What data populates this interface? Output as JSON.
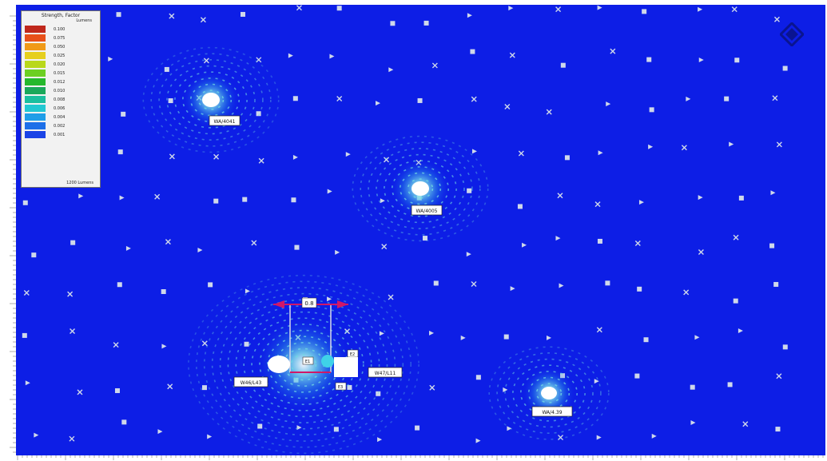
{
  "legend": {
    "title": "Strength, Factor",
    "unit": "Lumens",
    "footer": "1200 Lumens",
    "levels": [
      {
        "value": "0.100",
        "color": "#c0281c"
      },
      {
        "value": "0.075",
        "color": "#e8501a"
      },
      {
        "value": "0.050",
        "color": "#f09a18"
      },
      {
        "value": "0.025",
        "color": "#e6cf1e"
      },
      {
        "value": "0.020",
        "color": "#b9d81a"
      },
      {
        "value": "0.015",
        "color": "#6ccf22"
      },
      {
        "value": "0.012",
        "color": "#25b82c"
      },
      {
        "value": "0.010",
        "color": "#1aa85a"
      },
      {
        "value": "0.008",
        "color": "#1bbf9f"
      },
      {
        "value": "0.006",
        "color": "#22c8d2"
      },
      {
        "value": "0.004",
        "color": "#1f9ee8"
      },
      {
        "value": "0.002",
        "color": "#1d6fe8"
      },
      {
        "value": "0.001",
        "color": "#1b44e6"
      }
    ]
  },
  "colors": {
    "background": "#0d1ee6",
    "contour": "#6fd6e0",
    "marker": "#cfd8ea",
    "dimension_line": "#d01868"
  },
  "luminaires": [
    {
      "label": "WA/4041"
    },
    {
      "label": "WA/4005"
    },
    {
      "label": "W46/L43"
    },
    {
      "label": "W47/L11"
    },
    {
      "label": "WA/4.39"
    }
  ],
  "dimension": {
    "label": "0.8",
    "marker_a": "E1",
    "marker_b": "E2",
    "marker_c": "E3"
  }
}
